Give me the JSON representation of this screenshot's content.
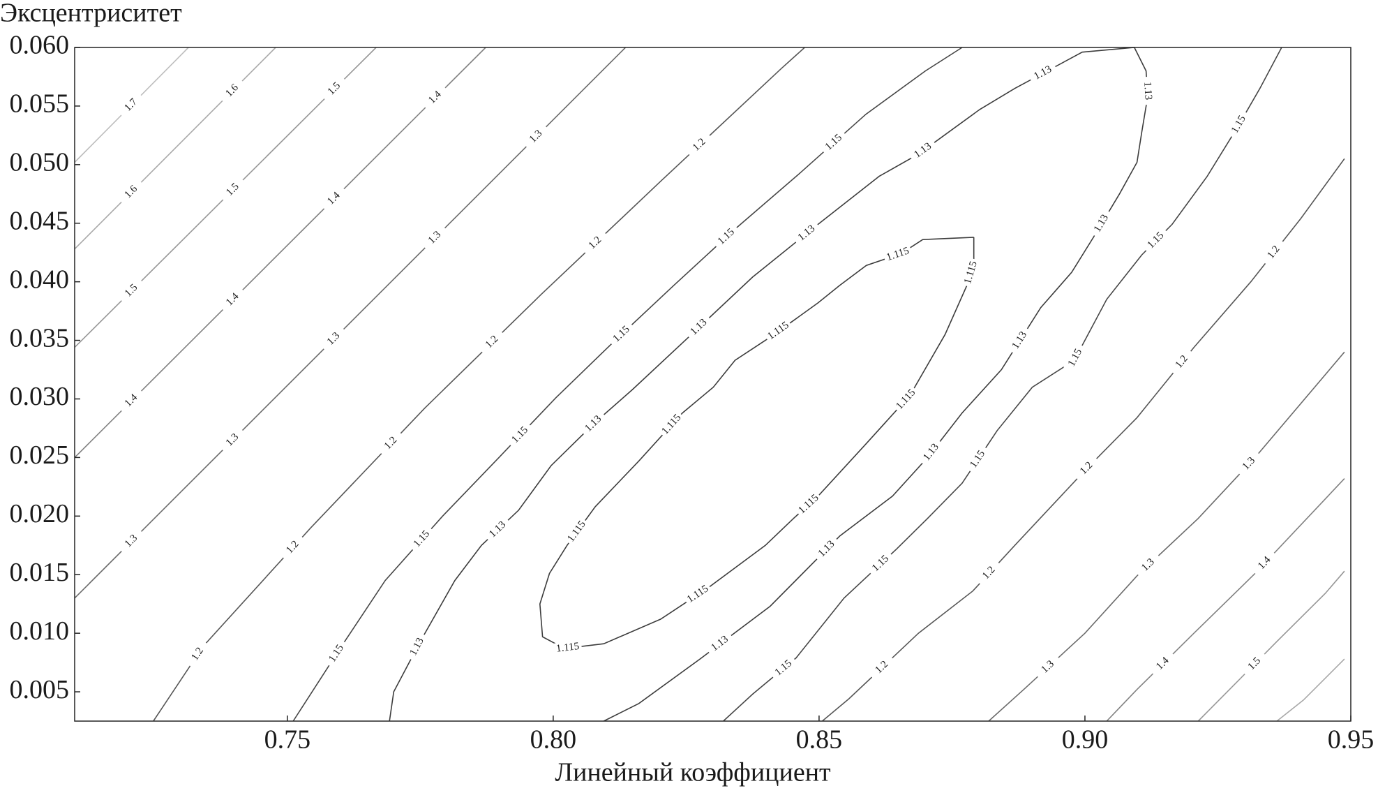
{
  "chart_data": {
    "type": "contour",
    "xlabel": "Линейный коэффициент",
    "ylabel": "Эксцентриситет",
    "xlim": [
      0.71,
      0.95
    ],
    "ylim": [
      0.0025,
      0.06
    ],
    "xticks": [
      0.75,
      {
        "value": 0.8,
        "label": "0.80"
      },
      0.85,
      {
        "value": 0.9,
        "label": "0.90"
      },
      0.95
    ],
    "yticks": [
      0.005,
      {
        "value": 0.01,
        "label": "0.010"
      },
      0.015,
      {
        "value": 0.02,
        "label": "0.020"
      },
      0.025,
      {
        "value": 0.03,
        "label": "0.030"
      },
      0.035,
      {
        "value": 0.04,
        "label": "0.040"
      },
      0.045,
      {
        "value": 0.05,
        "label": "0.050"
      },
      0.055,
      {
        "value": 0.06,
        "label": "0.060"
      }
    ],
    "series": [
      {
        "level": 1.7,
        "color": "#bdbdbd",
        "x": [
          0.71,
          0.7314
        ],
        "y": [
          0.0502,
          0.06
        ]
      },
      {
        "level": 1.6,
        "color": "#a8a8a8",
        "x": [
          0.71,
          0.7478
        ],
        "y": [
          0.0428,
          0.06
        ]
      },
      {
        "level": 1.5,
        "color": "#969696",
        "x": [
          0.71,
          0.7667
        ],
        "y": [
          0.0344,
          0.06
        ]
      },
      {
        "level": 1.4,
        "color": "#808080",
        "x": [
          0.71,
          0.7873
        ],
        "y": [
          0.025,
          0.06
        ]
      },
      {
        "level": 1.3,
        "color": "#6a6a6a",
        "x": [
          0.71,
          0.8136
        ],
        "y": [
          0.013,
          0.06
        ]
      },
      {
        "level": 1.2,
        "color": "#555555",
        "x": [
          0.7248,
          0.7342,
          0.7544,
          0.7758,
          0.7977,
          0.8205,
          0.8429,
          0.8473
        ],
        "y": [
          0.0025,
          0.0089,
          0.019,
          0.0292,
          0.0389,
          0.0487,
          0.0582,
          0.06
        ]
      },
      {
        "level": 1.15,
        "color": "#454545",
        "x": [
          0.7511,
          0.7602,
          0.7684,
          0.7792,
          0.7898,
          0.8005,
          0.8112,
          0.8227,
          0.8342,
          0.8462,
          0.8588,
          0.87,
          0.8769
        ],
        "y": [
          0.0025,
          0.0089,
          0.0145,
          0.02,
          0.025,
          0.0301,
          0.0348,
          0.0397,
          0.0445,
          0.0492,
          0.0543,
          0.058,
          0.06
        ]
      },
      {
        "level": 1.13,
        "color": "#3c3c3c",
        "x": [
          0.7692,
          0.77,
          0.775,
          0.7815,
          0.7865,
          0.7935,
          0.7996,
          0.8079,
          0.8149,
          0.826,
          0.8375,
          0.8498,
          0.8613,
          0.8687,
          0.8802,
          0.8868,
          0.8995,
          0.9093,
          0.9115,
          0.9118,
          0.9107,
          0.9098,
          0.9065,
          0.9016,
          0.8975,
          0.8917,
          0.8843,
          0.8769,
          0.8704,
          0.8638,
          0.8539,
          0.8408,
          0.8276,
          0.8161,
          0.8095
        ],
        "y": [
          0.0025,
          0.005,
          0.0093,
          0.0145,
          0.0175,
          0.0205,
          0.0243,
          0.028,
          0.0308,
          0.0355,
          0.0404,
          0.0449,
          0.049,
          0.0509,
          0.0547,
          0.0565,
          0.0596,
          0.06,
          0.058,
          0.0558,
          0.0528,
          0.0502,
          0.0475,
          0.0438,
          0.0408,
          0.0378,
          0.0325,
          0.0288,
          0.025,
          0.0217,
          0.0183,
          0.0123,
          0.0078,
          0.004,
          0.0025
        ]
      },
      {
        "level": 1.115,
        "color": "#3c3c3c",
        "x": [
          0.8791,
          0.8695,
          0.8654,
          0.8589,
          0.8539,
          0.8498,
          0.844,
          0.8399,
          0.8342,
          0.8301,
          0.8243,
          0.8161,
          0.8079,
          0.8026,
          0.7993,
          0.7975,
          0.798,
          0.8021,
          0.8095,
          0.8202,
          0.8292,
          0.8399,
          0.8452,
          0.8498,
          0.8589,
          0.8671,
          0.8737,
          0.8781,
          0.8791,
          0.8791
        ],
        "y": [
          0.0438,
          0.0436,
          0.0424,
          0.0414,
          0.0397,
          0.0382,
          0.0363,
          0.035,
          0.0333,
          0.031,
          0.0288,
          0.0247,
          0.0208,
          0.0175,
          0.0151,
          0.0125,
          0.0097,
          0.0087,
          0.0091,
          0.0112,
          0.0139,
          0.0175,
          0.0198,
          0.0217,
          0.0262,
          0.0303,
          0.0355,
          0.04,
          0.0415,
          0.0438
        ]
      },
      {
        "level": 1.15,
        "color": "#454545",
        "x": [
          0.832,
          0.8375,
          0.8457,
          0.8547,
          0.8646,
          0.8704,
          0.8769,
          0.8835,
          0.8901,
          0.898,
          0.9041,
          0.9107,
          0.9164,
          0.923,
          0.9287,
          0.9329,
          0.937
        ],
        "y": [
          0.0025,
          0.0048,
          0.0079,
          0.013,
          0.0172,
          0.0198,
          0.0228,
          0.0273,
          0.031,
          0.0333,
          0.0385,
          0.0423,
          0.0449,
          0.049,
          0.0532,
          0.0565,
          0.06
        ]
      },
      {
        "level": 1.2,
        "color": "#555555",
        "x": [
          0.8506,
          0.8556,
          0.8687,
          0.8789,
          0.8868,
          0.9,
          0.9098,
          0.9205,
          0.9312,
          0.9406,
          0.9488
        ],
        "y": [
          0.0025,
          0.0044,
          0.01,
          0.0136,
          0.0175,
          0.0239,
          0.0284,
          0.0344,
          0.04,
          0.0454,
          0.0505
        ]
      },
      {
        "level": 1.3,
        "color": "#6a6a6a",
        "x": [
          0.8819,
          0.8885,
          0.9,
          0.9098,
          0.9213,
          0.932,
          0.9488
        ],
        "y": [
          0.0025,
          0.0052,
          0.01,
          0.0149,
          0.0198,
          0.025,
          0.034
        ]
      },
      {
        "level": 1.4,
        "color": "#808080",
        "x": [
          0.9041,
          0.9098,
          0.9205,
          0.932,
          0.9488
        ],
        "y": [
          0.0025,
          0.0052,
          0.01,
          0.0151,
          0.0232
        ]
      },
      {
        "level": 1.5,
        "color": "#969696",
        "x": [
          0.9213,
          0.9296,
          0.9361,
          0.9452,
          0.9488
        ],
        "y": [
          0.0025,
          0.0063,
          0.0093,
          0.0134,
          0.0153
        ]
      },
      {
        "level": 1.6,
        "color": "#a8a8a8",
        "x": [
          0.9361,
          0.9411,
          0.9488
        ],
        "y": [
          0.0025,
          0.0043,
          0.0078
        ]
      }
    ]
  }
}
